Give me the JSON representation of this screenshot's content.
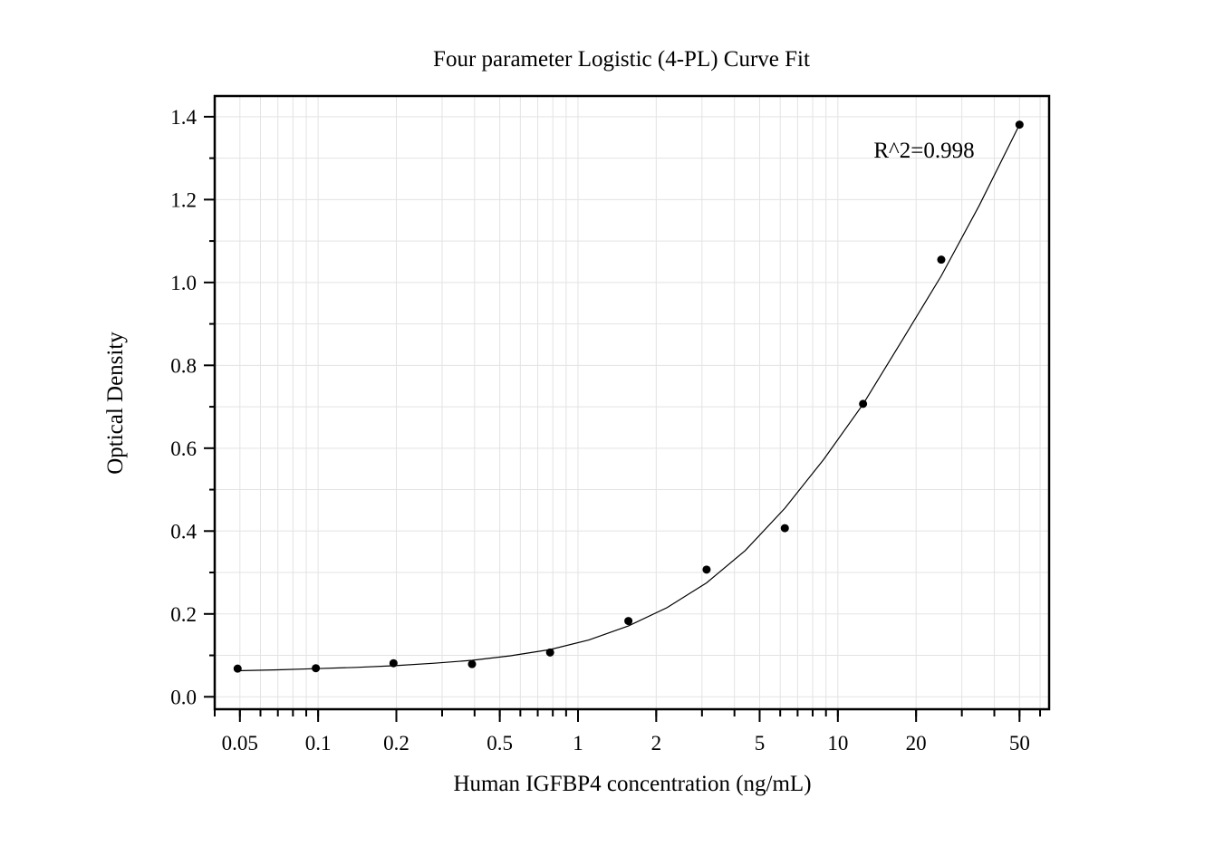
{
  "chart_data": {
    "type": "scatter",
    "title": "Four parameter Logistic (4-PL) Curve Fit",
    "xlabel": "Human IGFBP4 concentration (ng/mL)",
    "ylabel": "Optical Density",
    "x_scale": "log",
    "xlim": [
      0.04,
      65
    ],
    "ylim": [
      -0.03,
      1.45
    ],
    "x_ticks": [
      {
        "value": 0.05,
        "label": "0.05"
      },
      {
        "value": 0.1,
        "label": "0.1"
      },
      {
        "value": 0.2,
        "label": "0.2"
      },
      {
        "value": 0.5,
        "label": "0.5"
      },
      {
        "value": 1,
        "label": "1"
      },
      {
        "value": 2,
        "label": "2"
      },
      {
        "value": 5,
        "label": "5"
      },
      {
        "value": 10,
        "label": "10"
      },
      {
        "value": 20,
        "label": "20"
      },
      {
        "value": 50,
        "label": "50"
      }
    ],
    "y_ticks": [
      {
        "value": 0.0,
        "label": "0.0"
      },
      {
        "value": 0.2,
        "label": "0.2"
      },
      {
        "value": 0.4,
        "label": "0.4"
      },
      {
        "value": 0.6,
        "label": "0.6"
      },
      {
        "value": 0.8,
        "label": "0.8"
      },
      {
        "value": 1.0,
        "label": "1.0"
      },
      {
        "value": 1.2,
        "label": "1.2"
      },
      {
        "value": 1.4,
        "label": "1.4"
      }
    ],
    "grid": true,
    "series": [
      {
        "type": "scatter",
        "color": "#000000",
        "x": [
          0.049,
          0.098,
          0.195,
          0.391,
          0.781,
          1.563,
          3.125,
          6.25,
          12.5,
          25,
          50
        ],
        "y": [
          0.068,
          0.069,
          0.081,
          0.079,
          0.107,
          0.183,
          0.307,
          0.407,
          0.707,
          1.055,
          1.381
        ]
      },
      {
        "type": "line",
        "color": "#000000",
        "x": [
          0.049,
          0.07,
          0.098,
          0.14,
          0.195,
          0.28,
          0.391,
          0.55,
          0.781,
          1.1,
          1.563,
          2.2,
          3.125,
          4.4,
          6.25,
          8.8,
          12.5,
          17.7,
          25,
          35,
          50
        ],
        "y": [
          0.063,
          0.065,
          0.068,
          0.071,
          0.075,
          0.081,
          0.088,
          0.099,
          0.114,
          0.137,
          0.171,
          0.215,
          0.275,
          0.353,
          0.455,
          0.572,
          0.706,
          0.861,
          1.016,
          1.186,
          1.381
        ]
      }
    ],
    "annotations": [
      {
        "text": "R^2=0.998",
        "x": 20,
        "y": 1.31
      }
    ]
  }
}
